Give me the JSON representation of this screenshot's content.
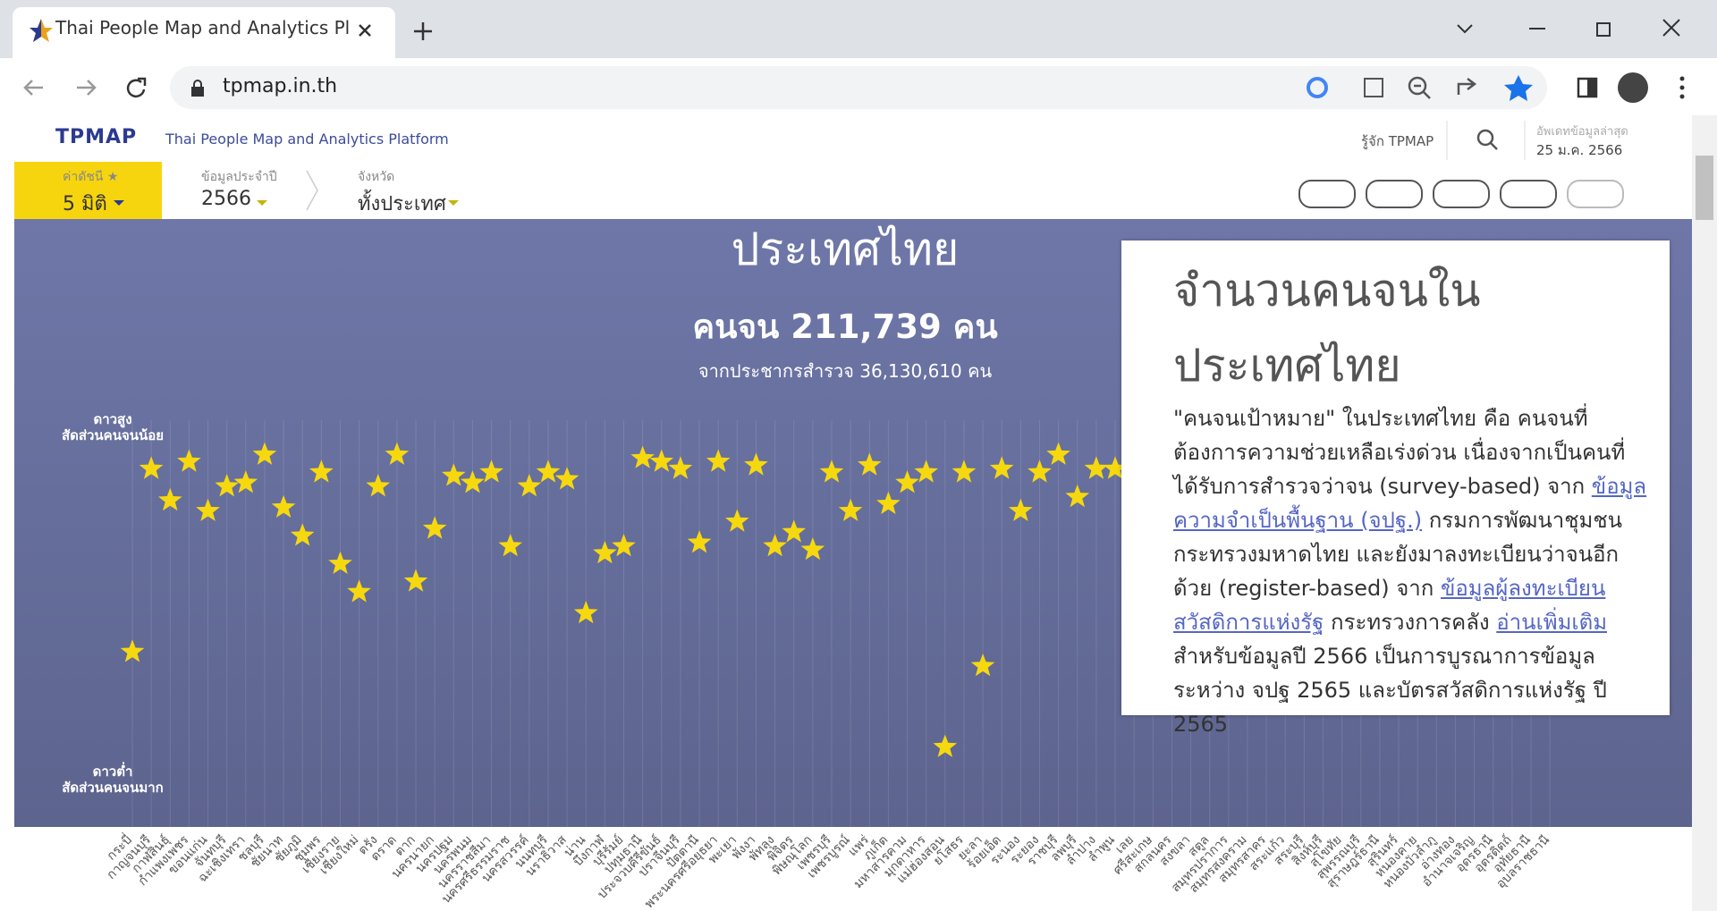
{
  "browser": {
    "tab_title": "Thai People Map and Analytics Pl",
    "url": "tpmap.in.th"
  },
  "header": {
    "logo": "TPMAP",
    "subtitle": "Thai People Map and Analytics Platform",
    "about": "รู้จัก TPMAP",
    "update_label": "อัพเดทข้อมูลล่าสุด",
    "update_date": "25 ม.ค. 2566"
  },
  "filters": [
    {
      "label": "ค่าดัชนี ★",
      "value": "5 มิติ"
    },
    {
      "label": "ข้อมูลประจำปี",
      "value": "2566"
    },
    {
      "label": "จังหวัด",
      "value": "ทั้งประเทศ"
    }
  ],
  "chart_data": {
    "type": "scatter",
    "title": "ประเทศไทย",
    "summary": "คนจน 211,739 คน",
    "subsummary": "จากประชากรสำรวจ 36,130,610 คน",
    "top_label": [
      "ดาวสูง",
      "สัดส่วนคนจนน้อย"
    ],
    "bottom_label": [
      "ดาวต่ำ",
      "สัดส่วนคนจนมาก"
    ],
    "color": "#f6d80f",
    "ylim": [
      0,
      100
    ],
    "categories": [
      "กระบี่",
      "กาญจนบุรี",
      "กาฬสินธุ์",
      "กำแพงเพชร",
      "ขอนแก่น",
      "จันทบุรี",
      "ฉะเชิงเทรา",
      "ชลบุรี",
      "ชัยนาท",
      "ชัยภูมิ",
      "ชุมพร",
      "เชียงราย",
      "เชียงใหม่",
      "ตรัง",
      "ตราด",
      "ตาก",
      "นครนายก",
      "นครปฐม",
      "นครพนม",
      "นครราชสีมา",
      "นครศรีธรรมราช",
      "นครสวรรค์",
      "นนทบุรี",
      "นราธิวาส",
      "น่าน",
      "บึงกาฬ",
      "บุรีรัมย์",
      "ปทุมธานี",
      "ประจวบคีรีขันธ์",
      "ปราจีนบุรี",
      "ปัตตานี",
      "พระนครศรีอยุธยา",
      "พะเยา",
      "พังงา",
      "พัทลุง",
      "พิจิตร",
      "พิษณุโลก",
      "เพชรบุรี",
      "เพชรบูรณ์",
      "แพร่",
      "ภูเก็ต",
      "มหาสารคาม",
      "มุกดาหาร",
      "แม่ฮ่องสอน",
      "ยโสธร",
      "ยะลา",
      "ร้อยเอ็ด",
      "ระนอง",
      "ระยอง",
      "ราชบุรี",
      "ลพบุรี",
      "ลำปาง",
      "ลำพูน",
      "เลย",
      "ศรีสะเกษ",
      "สกลนคร",
      "สงขลา",
      "สตูล",
      "สมุทรปราการ",
      "สมุทรสงคราม",
      "สมุทรสาคร",
      "สระแก้ว",
      "สระบุรี",
      "สิงห์บุรี",
      "สุโขทัย",
      "สุพรรณบุรี",
      "สุราษฎร์ธานี",
      "สุรินทร์",
      "หนองคาย",
      "หนองบัวลำภู",
      "อ่างทอง",
      "อำนาจเจริญ",
      "อุดรธานี",
      "อุตรดิตถ์",
      "อุทัยธานี",
      "อุบลราชธานี"
    ],
    "values": [
      37,
      89,
      80,
      91,
      77,
      84,
      85,
      93,
      78,
      70,
      88,
      62,
      54,
      84,
      93,
      57,
      72,
      87,
      85,
      88,
      67,
      84,
      88,
      86,
      48,
      65,
      67,
      92,
      91,
      89,
      68,
      91,
      74,
      90,
      67,
      71,
      66,
      88,
      77,
      90,
      79,
      85,
      88,
      10,
      88,
      33,
      89,
      77,
      88,
      93,
      81,
      89,
      89,
      null,
      null,
      null,
      null,
      null,
      null,
      null,
      null,
      null,
      null,
      null,
      null,
      null,
      null,
      null,
      null,
      null,
      null,
      null,
      null,
      null,
      null,
      null
    ]
  },
  "panel": {
    "title": "จำนวนคนจนในประเทศไทย",
    "body": [
      {
        "text": "\"คนจนเป้าหมาย\" ในประเทศไทย คือ คนจนที่ต้องการความช่วยเหลือเร่งด่วน เนื่องจากเป็นคนที่ได้รับการสำรวจว่าจน (survey-based) จาก ",
        "link": false
      },
      {
        "text": "ข้อมูลความจำเป็นพื้นฐาน (จปฐ.)",
        "link": true
      },
      {
        "text": " กรมการพัฒนาชุมชน กระทรวงมหาดไทย และยังมาลงทะเบียนว่าจนอีกด้วย (register-based) จาก ",
        "link": false
      },
      {
        "text": "ข้อมูลผู้ลงทะเบียนสวัสดิการแห่งรัฐ",
        "link": true
      },
      {
        "text": " กระทรวงการคลัง ",
        "link": false
      },
      {
        "text": "อ่านเพิ่มเติม",
        "link": true
      },
      {
        "text": " สำหรับข้อมูลปี 2566 เป็นการบูรณาการข้อมูลระหว่าง จปฐ 2565 และบัตรสวัสดิการแห่งรัฐ ปี 2565",
        "link": false
      }
    ]
  }
}
